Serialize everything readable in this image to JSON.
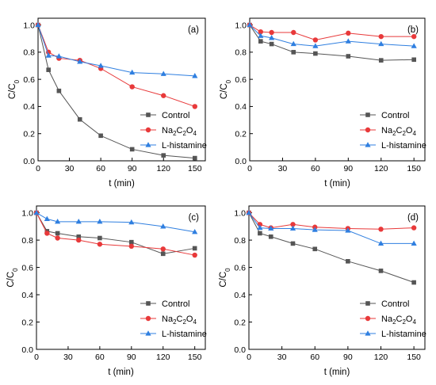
{
  "colors": {
    "control": "#555555",
    "na2c2o4": "#e8393a",
    "histamine": "#2f7fe0",
    "axis": "#000000"
  },
  "chart_data": [
    {
      "panel": "(a)",
      "type": "line",
      "xlabel": "t (min)",
      "ylabel_main": "C/C",
      "ylabel_sub": "0",
      "xlim": [
        0,
        160
      ],
      "ylim": [
        0,
        1.05
      ],
      "xticks": [
        "0",
        "30",
        "60",
        "90",
        "120",
        "150"
      ],
      "yticks": [
        "0.0",
        "0.2",
        "0.4",
        "0.6",
        "0.8",
        "1.0"
      ],
      "legend_position": "bottom-right",
      "series": [
        {
          "name": "Control",
          "marker": "square",
          "x": [
            0,
            10,
            20,
            40,
            60,
            90,
            120,
            150
          ],
          "y": [
            1.0,
            0.67,
            0.515,
            0.305,
            0.185,
            0.085,
            0.04,
            0.02
          ]
        },
        {
          "name_parts": [
            "Na",
            "2",
            "C",
            "2",
            "O",
            "4"
          ],
          "marker": "circle",
          "x": [
            0,
            10,
            20,
            40,
            60,
            90,
            120,
            150
          ],
          "y": [
            1.0,
            0.8,
            0.755,
            0.74,
            0.68,
            0.545,
            0.48,
            0.4
          ]
        },
        {
          "name": "L-histamine",
          "marker": "triangle",
          "x": [
            0,
            10,
            20,
            40,
            60,
            90,
            120,
            150
          ],
          "y": [
            1.0,
            0.775,
            0.77,
            0.73,
            0.7,
            0.65,
            0.64,
            0.625
          ]
        }
      ]
    },
    {
      "panel": "(b)",
      "type": "line",
      "xlabel": "t (min)",
      "ylabel_main": "C/C",
      "ylabel_sub": "0",
      "xlim": [
        0,
        160
      ],
      "ylim": [
        0,
        1.05
      ],
      "xticks": [
        "0",
        "30",
        "60",
        "90",
        "120",
        "150"
      ],
      "yticks": [
        "0.0",
        "0.2",
        "0.4",
        "0.6",
        "0.8",
        "1.0"
      ],
      "legend_position": "bottom-right",
      "series": [
        {
          "name": "Control",
          "marker": "square",
          "x": [
            0,
            10,
            20,
            40,
            60,
            90,
            120,
            150
          ],
          "y": [
            1.0,
            0.88,
            0.86,
            0.8,
            0.79,
            0.77,
            0.74,
            0.745
          ]
        },
        {
          "name_parts": [
            "Na",
            "2",
            "C",
            "2",
            "O",
            "4"
          ],
          "marker": "circle",
          "x": [
            0,
            10,
            20,
            40,
            60,
            90,
            120,
            150
          ],
          "y": [
            1.0,
            0.95,
            0.945,
            0.945,
            0.89,
            0.94,
            0.915,
            0.915
          ]
        },
        {
          "name": "L-histamine",
          "marker": "triangle",
          "x": [
            0,
            10,
            20,
            40,
            60,
            90,
            120,
            150
          ],
          "y": [
            1.0,
            0.92,
            0.905,
            0.86,
            0.845,
            0.88,
            0.86,
            0.845
          ]
        }
      ]
    },
    {
      "panel": "(c)",
      "type": "line",
      "xlabel": "t (min)",
      "ylabel_main": "C/C",
      "ylabel_sub": "0",
      "xlim": [
        0,
        160
      ],
      "ylim": [
        0,
        1.05
      ],
      "xticks": [
        "0",
        "30",
        "60",
        "90",
        "120",
        "150"
      ],
      "yticks": [
        "0.0",
        "0.2",
        "0.4",
        "0.6",
        "0.8",
        "1.0"
      ],
      "legend_position": "bottom-right",
      "series": [
        {
          "name": "Control",
          "marker": "square",
          "x": [
            0,
            10,
            20,
            40,
            60,
            90,
            120,
            150
          ],
          "y": [
            1.0,
            0.865,
            0.85,
            0.825,
            0.815,
            0.785,
            0.7,
            0.74
          ]
        },
        {
          "name_parts": [
            "Na",
            "2",
            "C",
            "2",
            "O",
            "4"
          ],
          "marker": "circle",
          "x": [
            0,
            10,
            20,
            40,
            60,
            90,
            120,
            150
          ],
          "y": [
            1.0,
            0.85,
            0.815,
            0.8,
            0.77,
            0.755,
            0.735,
            0.69
          ]
        },
        {
          "name": "L-histamine",
          "marker": "triangle",
          "x": [
            0,
            10,
            20,
            40,
            60,
            90,
            120,
            150
          ],
          "y": [
            1.0,
            0.955,
            0.935,
            0.935,
            0.935,
            0.93,
            0.9,
            0.86
          ]
        }
      ]
    },
    {
      "panel": "(d)",
      "type": "line",
      "xlabel": "t (min)",
      "ylabel_main": "C/C",
      "ylabel_sub": "0",
      "xlim": [
        0,
        160
      ],
      "ylim": [
        0,
        1.05
      ],
      "xticks": [
        "0",
        "30",
        "60",
        "90",
        "120",
        "150"
      ],
      "yticks": [
        "0.0",
        "0.2",
        "0.4",
        "0.6",
        "0.8",
        "1.0"
      ],
      "legend_position": "bottom-right",
      "series": [
        {
          "name": "Control",
          "marker": "square",
          "x": [
            0,
            10,
            20,
            40,
            60,
            90,
            120,
            150
          ],
          "y": [
            1.0,
            0.85,
            0.825,
            0.775,
            0.735,
            0.645,
            0.575,
            0.49
          ]
        },
        {
          "name_parts": [
            "Na",
            "2",
            "C",
            "2",
            "O",
            "4"
          ],
          "marker": "circle",
          "x": [
            0,
            10,
            20,
            40,
            60,
            90,
            120,
            150
          ],
          "y": [
            1.0,
            0.915,
            0.89,
            0.915,
            0.895,
            0.885,
            0.88,
            0.89
          ]
        },
        {
          "name": "L-histamine",
          "marker": "triangle",
          "x": [
            0,
            10,
            20,
            40,
            60,
            90,
            120,
            150
          ],
          "y": [
            1.0,
            0.89,
            0.885,
            0.885,
            0.875,
            0.87,
            0.775,
            0.775
          ]
        }
      ]
    }
  ]
}
